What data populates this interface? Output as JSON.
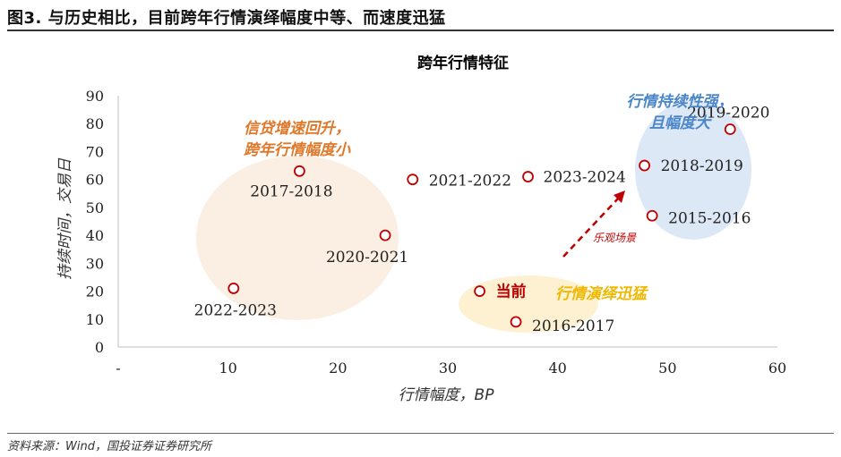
{
  "figure": {
    "title": "图3. 与历史相比，目前跨年行情演绎幅度中等、而速度迅猛",
    "source": "资料来源：Wind，国投证券证券研究所"
  },
  "chart_data": {
    "type": "scatter",
    "title": "跨年行情特征",
    "xlabel": "行情幅度，BP",
    "ylabel": "持续时间，交易日",
    "xlim": [
      0,
      60
    ],
    "ylim": [
      0,
      90
    ],
    "x_ticks": [
      "-",
      "10",
      "20",
      "30",
      "40",
      "50",
      "60"
    ],
    "y_ticks": [
      "0",
      "10",
      "20",
      "30",
      "40",
      "50",
      "60",
      "70",
      "80",
      "90"
    ],
    "grid": false,
    "marker_color": "#c00000",
    "points": [
      {
        "label": "2022-2023",
        "x": 10.5,
        "y": 21
      },
      {
        "label": "2017-2018",
        "x": 16.5,
        "y": 63
      },
      {
        "label": "2020-2021",
        "x": 24.3,
        "y": 40
      },
      {
        "label": "2021-2022",
        "x": 26.8,
        "y": 60
      },
      {
        "label": "2023-2024",
        "x": 37.3,
        "y": 61
      },
      {
        "label": "当前",
        "x": 32.9,
        "y": 20
      },
      {
        "label": "2016-2017",
        "x": 36.2,
        "y": 9
      },
      {
        "label": "2018-2019",
        "x": 47.9,
        "y": 65
      },
      {
        "label": "2015-2016",
        "x": 48.6,
        "y": 47
      },
      {
        "label": "2019-2020",
        "x": 55.7,
        "y": 78
      }
    ],
    "annotations": [
      {
        "id": "left",
        "lines": [
          "信贷增速回升，",
          "跨年行情幅度小"
        ],
        "color": "#e0782a"
      },
      {
        "id": "mid",
        "lines": [
          "行情演绎迅猛"
        ],
        "color": "#f0b800"
      },
      {
        "id": "right",
        "lines": [
          "行情持续性强，",
          "且幅度大"
        ],
        "color": "#4a86c8"
      },
      {
        "id": "arrow",
        "lines": [
          "乐观场景"
        ],
        "color": "#c00000"
      }
    ],
    "highlight_colors": {
      "left": "#fbeee2",
      "mid": "#fdf1d2",
      "right": "#dde8f6"
    }
  }
}
